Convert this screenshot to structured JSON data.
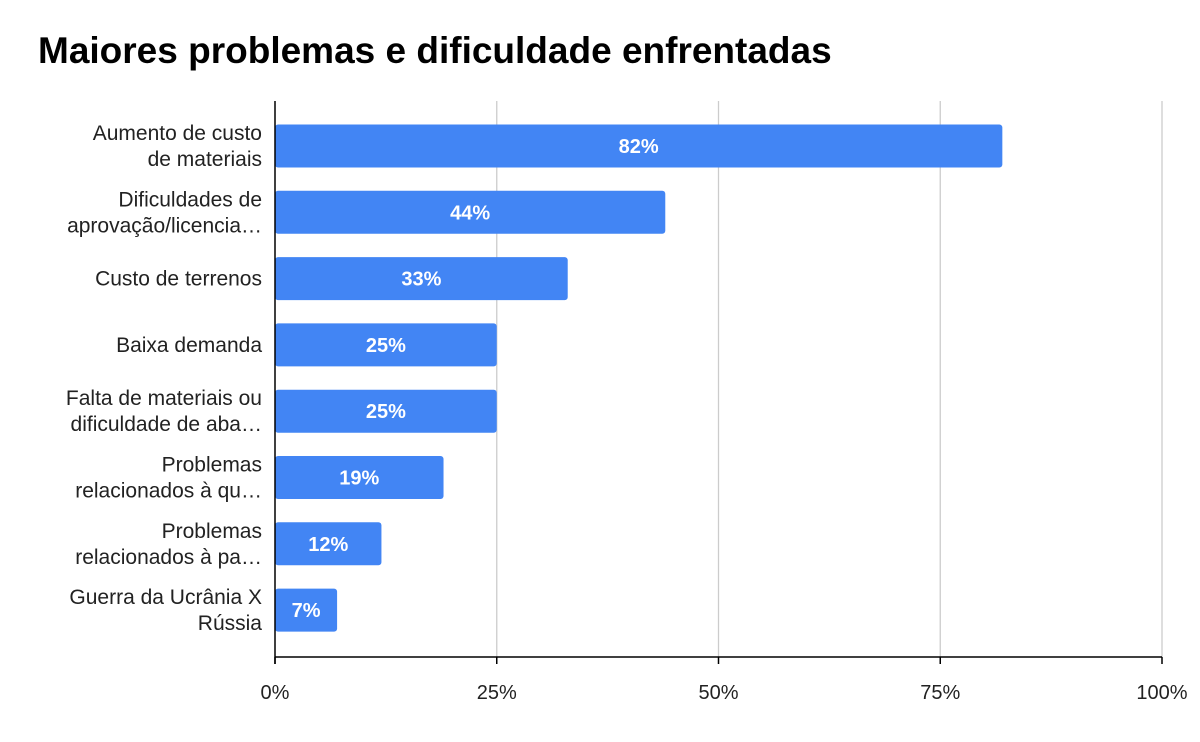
{
  "chart_data": {
    "type": "bar",
    "orientation": "horizontal",
    "title": "Maiores problemas e dificuldade enfrentadas",
    "categories": [
      [
        "Aumento de custo",
        "de materiais"
      ],
      [
        "Dificuldades de",
        "aprovação/licencia…"
      ],
      [
        "Custo de terrenos"
      ],
      [
        "Baixa demanda"
      ],
      [
        "Falta de materiais ou",
        "dificuldade de aba…"
      ],
      [
        "Problemas",
        "relacionados à qu…"
      ],
      [
        "Problemas",
        "relacionados à pa…"
      ],
      [
        "Guerra da Ucrânia X",
        "Rússia"
      ]
    ],
    "values": [
      82,
      44,
      33,
      25,
      25,
      19,
      12,
      7
    ],
    "data_labels": [
      "82%",
      "44%",
      "33%",
      "25%",
      "25%",
      "19%",
      "12%",
      "7%"
    ],
    "xlim": [
      0,
      100
    ],
    "ticks": [
      0,
      25,
      50,
      75,
      100
    ],
    "tick_labels": [
      "0%",
      "25%",
      "50%",
      "75%",
      "100%"
    ],
    "grid": true,
    "colors": {
      "bar": "#4285f4",
      "grid": "#cccccc",
      "axis": "#000000"
    }
  }
}
